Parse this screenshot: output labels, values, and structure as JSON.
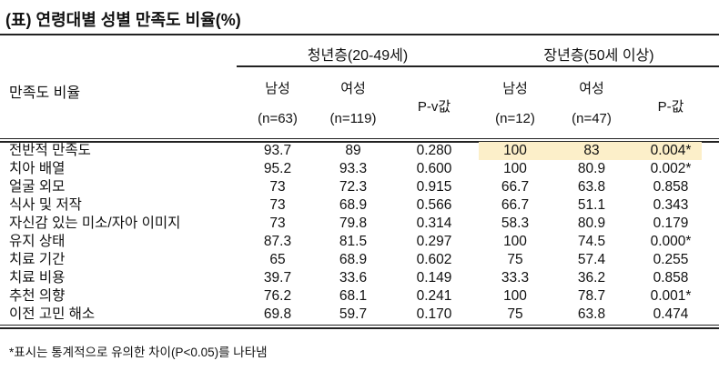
{
  "title": "(표) 연령대별 성별 만족도 비율(%)",
  "header": {
    "row_label": "만족도 비율",
    "groups": [
      {
        "label": "청년층(20-49세)",
        "male": "남성",
        "male_n": "(n=63)",
        "female": "여성",
        "female_n": "(n=119)",
        "p": "P-v값"
      },
      {
        "label": "장년층(50세 이상)",
        "male": "남성",
        "male_n": "(n=12)",
        "female": "여성",
        "female_n": "(n=47)",
        "p": "P-값"
      }
    ]
  },
  "highlight_color": "#fcefc9",
  "rows": [
    {
      "label": "전반적 만족도",
      "values": [
        "93.7",
        "89",
        "0.280",
        "100",
        "83",
        "0.004*"
      ]
    },
    {
      "label": "치아 배열",
      "values": [
        "95.2",
        "93.3",
        "0.600",
        "100",
        "80.9",
        "0.002*"
      ]
    },
    {
      "label": "얼굴 외모",
      "values": [
        "73",
        "72.3",
        "0.915",
        "66.7",
        "63.8",
        "0.858"
      ]
    },
    {
      "label": "식사 및 저작",
      "values": [
        "73",
        "68.9",
        "0.566",
        "66.7",
        "51.1",
        "0.343"
      ]
    },
    {
      "label": "자신감 있는 미소/자아 이미지",
      "values": [
        "73",
        "79.8",
        "0.314",
        "58.3",
        "80.9",
        "0.179"
      ]
    },
    {
      "label": "유지 상태",
      "values": [
        "87.3",
        "81.5",
        "0.297",
        "100",
        "74.5",
        "0.000*"
      ]
    },
    {
      "label": "치료 기간",
      "values": [
        "65",
        "68.9",
        "0.602",
        "75",
        "57.4",
        "0.255"
      ]
    },
    {
      "label": "치료 비용",
      "values": [
        "39.7",
        "33.6",
        "0.149",
        "33.3",
        "36.2",
        "0.858"
      ]
    },
    {
      "label": "추천 의향",
      "values": [
        "76.2",
        "68.1",
        "0.241",
        "100",
        "78.7",
        "0.001*"
      ]
    },
    {
      "label": "이전 고민 해소",
      "values": [
        "69.8",
        "59.7",
        "0.170",
        "75",
        "63.8",
        "0.474"
      ]
    }
  ],
  "footnote": "*표시는 통계적으로 유의한 차이(P<0.05)를 나타냄"
}
